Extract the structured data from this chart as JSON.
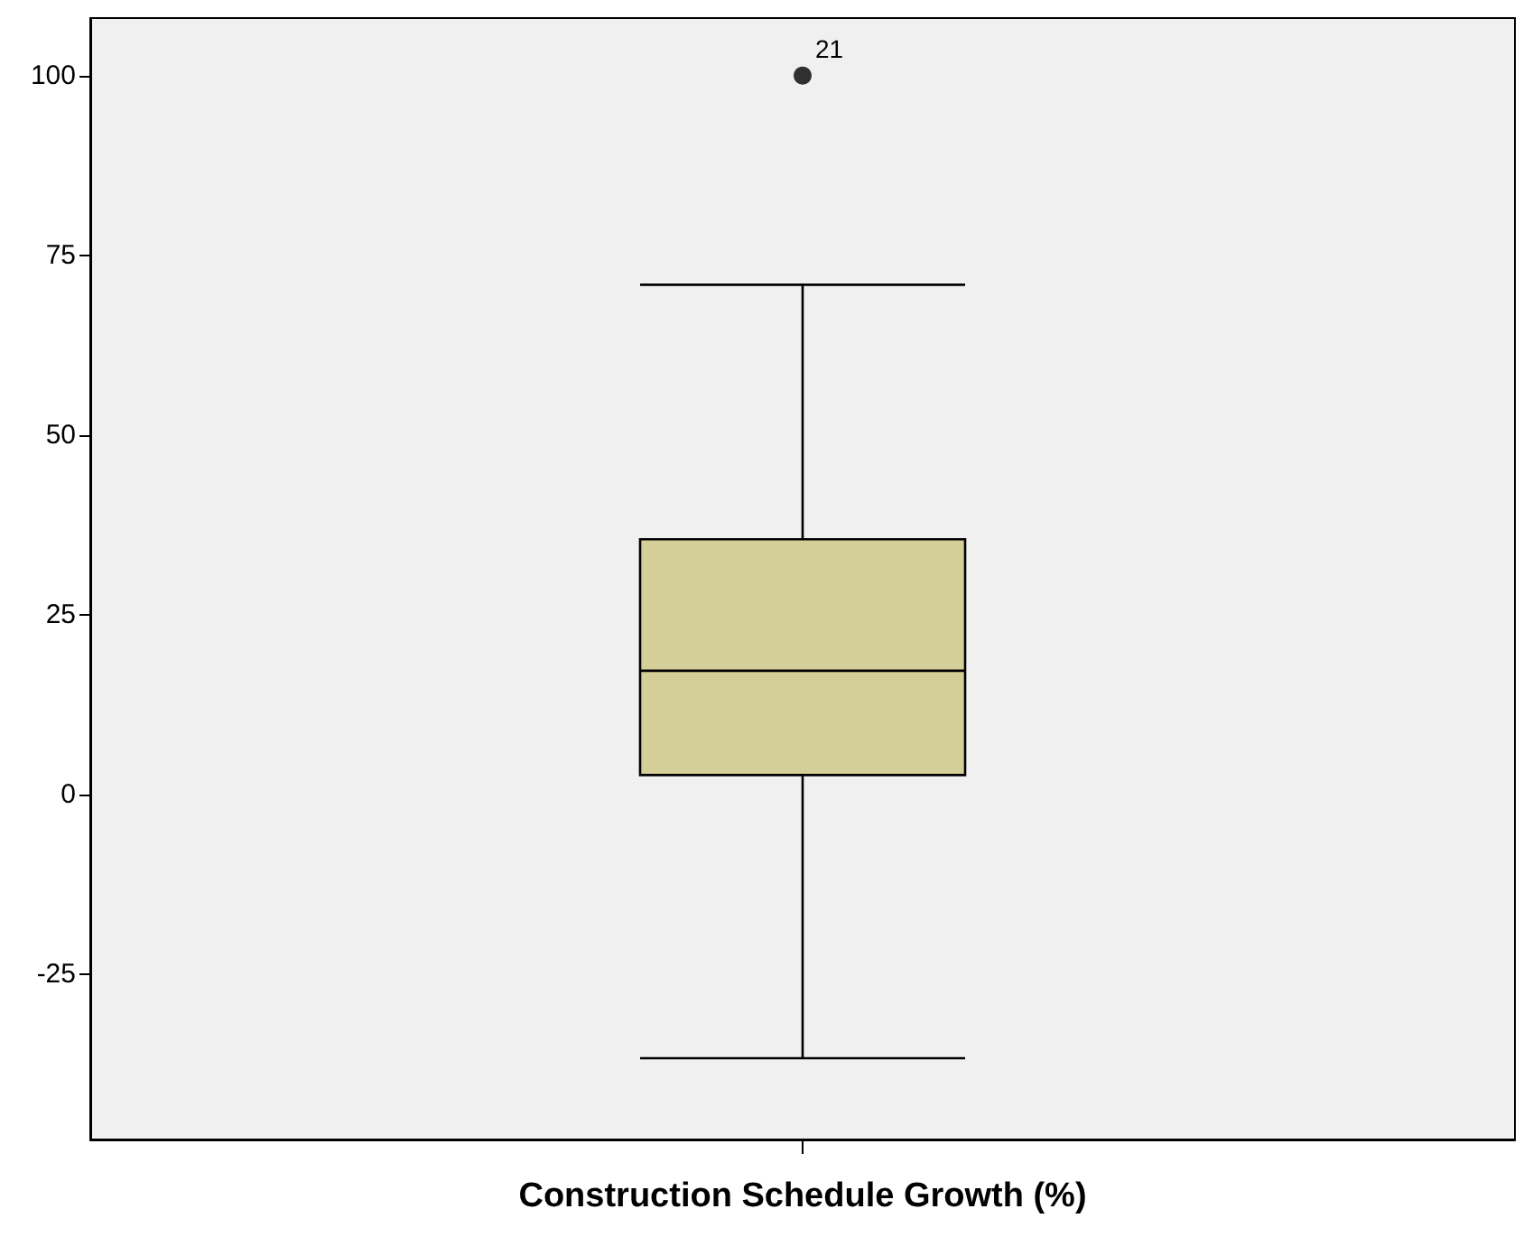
{
  "chart_data": {
    "type": "box",
    "xlabel": "Construction Schedule Growth (%)",
    "categories": [
      null
    ],
    "boxes": [
      {
        "low": -36.7,
        "q1": 2.7,
        "median": 17.2,
        "q3": 35.5,
        "high": 70.9,
        "outliers": [
          100
        ]
      }
    ],
    "color": "#d4cf98",
    "ylim": [
      -48,
      108
    ],
    "yticks": [
      -25,
      0,
      25,
      50,
      75,
      100
    ],
    "grid": false,
    "annotations": [
      "21"
    ]
  }
}
